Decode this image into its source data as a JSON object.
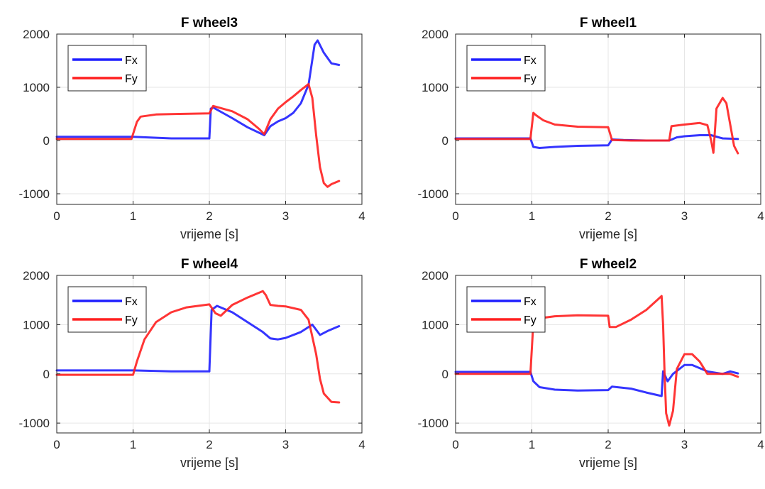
{
  "chart_data": [
    {
      "type": "line",
      "title": "F wheel3",
      "xlabel": "vrijeme [s]",
      "ylabel": "",
      "xlim": [
        0,
        4
      ],
      "ylim": [
        -1200,
        2000
      ],
      "xticks": [
        "0",
        "1",
        "2",
        "3",
        "4"
      ],
      "yticks": [
        "-1000",
        "0",
        "1000",
        "2000"
      ],
      "grid": true,
      "legend": "top-left",
      "series": [
        {
          "name": "Fx",
          "color": "#1f1fff",
          "x": [
            0,
            1.0,
            1.5,
            2.0,
            2.02,
            2.05,
            2.3,
            2.5,
            2.72,
            2.8,
            2.9,
            3.0,
            3.1,
            3.2,
            3.3,
            3.38,
            3.42,
            3.5,
            3.6,
            3.7
          ],
          "y": [
            70,
            70,
            40,
            40,
            600,
            620,
            420,
            250,
            100,
            270,
            360,
            420,
            520,
            700,
            1050,
            1800,
            1880,
            1650,
            1450,
            1420
          ]
        },
        {
          "name": "Fy",
          "color": "#ff1f1f",
          "x": [
            0,
            0.98,
            1.05,
            1.1,
            1.3,
            1.6,
            2.0,
            2.05,
            2.3,
            2.5,
            2.65,
            2.72,
            2.8,
            2.9,
            3.0,
            3.1,
            3.2,
            3.3,
            3.35,
            3.4,
            3.45,
            3.5,
            3.55,
            3.6,
            3.7
          ],
          "y": [
            30,
            30,
            350,
            450,
            490,
            500,
            510,
            650,
            550,
            400,
            220,
            120,
            400,
            600,
            720,
            830,
            950,
            1060,
            800,
            100,
            -500,
            -800,
            -870,
            -820,
            -760
          ]
        }
      ]
    },
    {
      "type": "line",
      "title": "F wheel1",
      "xlabel": "vrijeme [s]",
      "ylabel": "",
      "xlim": [
        0,
        4
      ],
      "ylim": [
        -1200,
        2000
      ],
      "xticks": [
        "0",
        "1",
        "2",
        "3",
        "4"
      ],
      "yticks": [
        "-1000",
        "0",
        "1000",
        "2000"
      ],
      "grid": true,
      "legend": "top-left",
      "series": [
        {
          "name": "Fx",
          "color": "#1f1fff",
          "x": [
            0,
            0.98,
            1.02,
            1.1,
            1.3,
            1.6,
            2.0,
            2.05,
            2.2,
            2.5,
            2.8,
            2.9,
            3.0,
            3.2,
            3.35,
            3.5,
            3.7
          ],
          "y": [
            40,
            40,
            -120,
            -140,
            -120,
            -100,
            -90,
            20,
            10,
            0,
            0,
            60,
            80,
            100,
            100,
            40,
            30
          ]
        },
        {
          "name": "Fy",
          "color": "#ff1f1f",
          "x": [
            0,
            0.98,
            1.02,
            1.05,
            1.15,
            1.3,
            1.6,
            2.0,
            2.05,
            2.3,
            2.6,
            2.8,
            2.83,
            3.0,
            3.2,
            3.3,
            3.35,
            3.38,
            3.42,
            3.5,
            3.55,
            3.6,
            3.65,
            3.7
          ],
          "y": [
            30,
            30,
            520,
            480,
            380,
            300,
            260,
            250,
            10,
            0,
            0,
            0,
            270,
            300,
            330,
            290,
            0,
            -230,
            600,
            800,
            700,
            300,
            -100,
            -240
          ]
        }
      ]
    },
    {
      "type": "line",
      "title": "F wheel4",
      "xlabel": "vrijeme [s]",
      "ylabel": "",
      "xlim": [
        0,
        4
      ],
      "ylim": [
        -1200,
        2000
      ],
      "xticks": [
        "0",
        "1",
        "2",
        "3",
        "4"
      ],
      "yticks": [
        "-1000",
        "0",
        "1000",
        "2000"
      ],
      "grid": true,
      "legend": "top-left",
      "series": [
        {
          "name": "Fx",
          "color": "#1f1fff",
          "x": [
            0,
            1.0,
            1.5,
            2.0,
            2.03,
            2.1,
            2.3,
            2.5,
            2.7,
            2.8,
            2.9,
            3.0,
            3.2,
            3.35,
            3.45,
            3.55,
            3.7
          ],
          "y": [
            70,
            70,
            50,
            50,
            1300,
            1380,
            1250,
            1050,
            850,
            720,
            700,
            730,
            850,
            1000,
            790,
            870,
            970
          ]
        },
        {
          "name": "Fy",
          "color": "#ff1f1f",
          "x": [
            0,
            1.0,
            1.05,
            1.15,
            1.3,
            1.5,
            1.7,
            2.0,
            2.08,
            2.15,
            2.3,
            2.5,
            2.7,
            2.74,
            2.8,
            2.9,
            3.0,
            3.2,
            3.3,
            3.4,
            3.45,
            3.5,
            3.6,
            3.7
          ],
          "y": [
            -20,
            -20,
            250,
            700,
            1050,
            1250,
            1350,
            1410,
            1230,
            1180,
            1400,
            1550,
            1680,
            1600,
            1400,
            1380,
            1370,
            1300,
            1100,
            400,
            -100,
            -400,
            -570,
            -580
          ]
        }
      ]
    },
    {
      "type": "line",
      "title": "F wheel2",
      "xlabel": "vrijeme [s]",
      "ylabel": "",
      "xlim": [
        0,
        4
      ],
      "ylim": [
        -1200,
        2000
      ],
      "xticks": [
        "0",
        "1",
        "2",
        "3",
        "4"
      ],
      "yticks": [
        "-1000",
        "0",
        "1000",
        "2000"
      ],
      "grid": true,
      "legend": "top-left",
      "series": [
        {
          "name": "Fx",
          "color": "#1f1fff",
          "x": [
            0,
            0.98,
            1.02,
            1.1,
            1.3,
            1.6,
            2.0,
            2.05,
            2.3,
            2.5,
            2.7,
            2.72,
            2.78,
            2.85,
            3.0,
            3.1,
            3.3,
            3.5,
            3.6,
            3.7
          ],
          "y": [
            40,
            40,
            -150,
            -270,
            -320,
            -340,
            -330,
            -260,
            -300,
            -380,
            -450,
            50,
            -150,
            0,
            180,
            180,
            50,
            0,
            50,
            10
          ]
        },
        {
          "name": "Fy",
          "color": "#ff1f1f",
          "x": [
            0,
            0.98,
            1.02,
            1.1,
            1.3,
            1.6,
            2.0,
            2.02,
            2.1,
            2.3,
            2.5,
            2.7,
            2.72,
            2.74,
            2.76,
            2.8,
            2.85,
            2.9,
            3.0,
            3.1,
            3.2,
            3.3,
            3.4,
            3.5,
            3.6,
            3.65,
            3.7
          ],
          "y": [
            0,
            0,
            1050,
            1130,
            1170,
            1190,
            1180,
            950,
            950,
            1100,
            1300,
            1580,
            1000,
            0,
            -800,
            -1050,
            -750,
            100,
            400,
            400,
            250,
            0,
            0,
            0,
            0,
            -30,
            -60
          ]
        }
      ]
    }
  ]
}
